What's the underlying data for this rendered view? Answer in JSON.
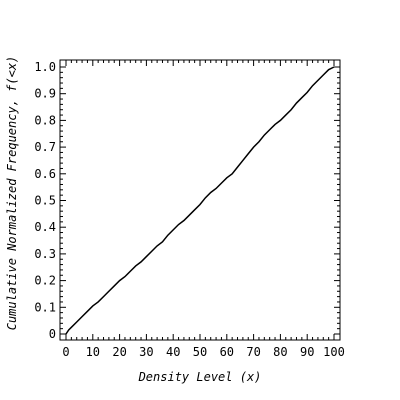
{
  "chart_data": {
    "type": "line",
    "title": "",
    "xlabel": "Density Level (x)",
    "ylabel": "Cumulative Normalized Frequency, f(<x)",
    "xlim": [
      0,
      100
    ],
    "ylim": [
      0,
      1.0
    ],
    "x_ticks": [
      0,
      10,
      20,
      30,
      40,
      50,
      60,
      70,
      80,
      90,
      100
    ],
    "y_ticks": [
      0,
      0.1,
      0.2,
      0.3,
      0.4,
      0.5,
      0.6,
      0.7,
      0.8,
      0.9,
      1.0
    ],
    "x_tick_labels": [
      "0",
      "10",
      "20",
      "30",
      "40",
      "50",
      "60",
      "70",
      "80",
      "90",
      "100"
    ],
    "y_tick_labels": [
      "0",
      "0.1",
      "0.2",
      "0.3",
      "0.4",
      "0.5",
      "0.6",
      "0.7",
      "0.8",
      "0.9",
      "1.0"
    ],
    "grid": false,
    "series": [
      {
        "x": [
          0,
          1,
          2,
          4,
          6,
          8,
          10,
          12,
          14,
          16,
          18,
          20,
          22,
          24,
          26,
          28,
          30,
          32,
          34,
          36,
          38,
          40,
          42,
          44,
          46,
          48,
          50,
          52,
          54,
          56,
          58,
          60,
          62,
          64,
          66,
          68,
          70,
          72,
          74,
          76,
          78,
          80,
          82,
          84,
          86,
          88,
          90,
          92,
          94,
          96,
          98,
          100
        ],
        "y": [
          0.0,
          0.015,
          0.025,
          0.045,
          0.065,
          0.085,
          0.105,
          0.12,
          0.14,
          0.16,
          0.18,
          0.2,
          0.215,
          0.235,
          0.255,
          0.27,
          0.29,
          0.31,
          0.33,
          0.345,
          0.37,
          0.39,
          0.41,
          0.425,
          0.445,
          0.465,
          0.485,
          0.51,
          0.53,
          0.545,
          0.565,
          0.585,
          0.6,
          0.625,
          0.65,
          0.675,
          0.7,
          0.72,
          0.745,
          0.765,
          0.785,
          0.8,
          0.82,
          0.84,
          0.865,
          0.885,
          0.905,
          0.93,
          0.95,
          0.97,
          0.99,
          1.0
        ],
        "color": "#000000"
      }
    ]
  }
}
